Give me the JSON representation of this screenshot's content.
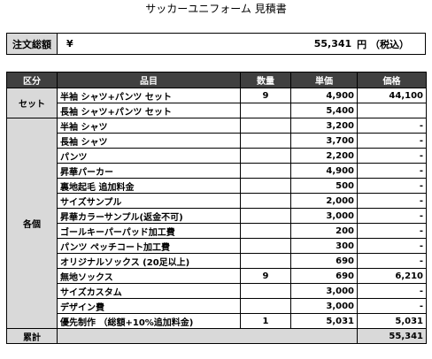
{
  "title": "サッカーユニフォーム 見積書",
  "total": {
    "label": "注文総額",
    "currency": "¥",
    "amount": "55,341",
    "unit": "円 （税込）"
  },
  "headers": [
    "区分",
    "品目",
    "数量",
    "単価",
    "価格"
  ],
  "groups": [
    {
      "category": "セット",
      "rows": [
        {
          "item": "半袖 シャツ+パンツ セット",
          "qty": "9",
          "unit_price": "4,900",
          "price": "44,100"
        },
        {
          "item": "長袖 シャツ+パンツ セット",
          "qty": "",
          "unit_price": "5,400",
          "price": ""
        }
      ]
    },
    {
      "category": "各個",
      "rows": [
        {
          "item": "半袖 シャツ",
          "qty": "",
          "unit_price": "3,200",
          "price": "-"
        },
        {
          "item": "長袖 シャツ",
          "qty": "",
          "unit_price": "3,700",
          "price": "-"
        },
        {
          "item": "パンツ",
          "qty": "",
          "unit_price": "2,200",
          "price": "-"
        },
        {
          "item": "昇華パーカー",
          "qty": "",
          "unit_price": "4,900",
          "price": "-"
        },
        {
          "item": "裏地起毛 追加料金",
          "qty": "",
          "unit_price": "500",
          "price": "-"
        },
        {
          "item": "サイズサンプル",
          "qty": "",
          "unit_price": "2,000",
          "price": "-"
        },
        {
          "item": "昇華カラーサンプル(返金不可)",
          "qty": "",
          "unit_price": "3,000",
          "price": "-"
        },
        {
          "item": "ゴールキーパーパッド加工費",
          "qty": "",
          "unit_price": "200",
          "price": "-"
        },
        {
          "item": "パンツ ペッチコート加工費",
          "qty": "",
          "unit_price": "300",
          "price": "-"
        },
        {
          "item": "オリジナルソックス (20足以上)",
          "qty": "",
          "unit_price": "690",
          "price": "-"
        },
        {
          "item": "無地ソックス",
          "qty": "9",
          "unit_price": "690",
          "price": "6,210"
        },
        {
          "item": "サイズカスタム",
          "qty": "",
          "unit_price": "3,000",
          "price": "-"
        },
        {
          "item": "デザイン費",
          "qty": "",
          "unit_price": "3,000",
          "price": "-"
        },
        {
          "item": "優先制作 （総額+10%追加料金)",
          "qty": "1",
          "unit_price": "5,031",
          "price": "5,031"
        }
      ]
    }
  ],
  "summary": {
    "label": "累計",
    "price": "55,341"
  }
}
